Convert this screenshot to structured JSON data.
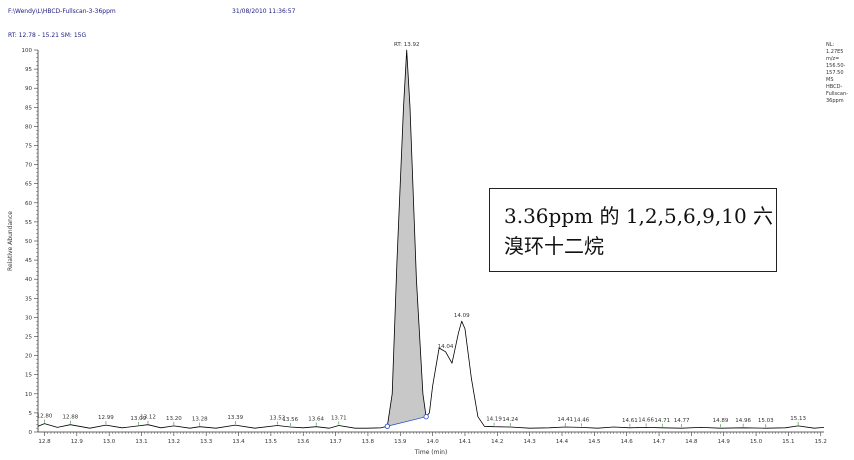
{
  "header": {
    "file_path": "F:\\Wendy\\L\\HBCD-Fullscan-3-36ppm",
    "datetime": "31/08/2010 11:36:57",
    "rt_range": "RT: 12.78 - 15.21   SM: 15G"
  },
  "nl_info": [
    "NL:",
    "1.27E5",
    "m/z=",
    "156.50-",
    "157.50",
    "MS",
    "HBCD-",
    "Fullscan-",
    "36ppm"
  ],
  "annotation": {
    "line1": "3.36ppm 的 1,2,5,6,9,10 六",
    "line2": "溴环十二烷"
  },
  "chart_data": {
    "type": "line",
    "title": "",
    "xlabel": "Time (min)",
    "ylabel": "Relative Abundance",
    "xlim": [
      12.78,
      15.21
    ],
    "ylim": [
      0,
      100
    ],
    "x_ticks": [
      12.8,
      12.9,
      13.0,
      13.1,
      13.2,
      13.3,
      13.4,
      13.5,
      13.6,
      13.7,
      13.8,
      13.9,
      14.0,
      14.1,
      14.2,
      14.3,
      14.4,
      14.5,
      14.6,
      14.7,
      14.8,
      14.9,
      15.0,
      15.1,
      15.2
    ],
    "y_ticks": [
      0,
      5,
      10,
      15,
      20,
      25,
      30,
      35,
      40,
      45,
      50,
      55,
      60,
      65,
      70,
      75,
      80,
      85,
      90,
      95,
      100
    ],
    "series": [
      {
        "x": [
          12.78,
          12.8,
          12.84,
          12.88,
          12.94,
          12.99,
          13.04,
          13.09,
          13.12,
          13.16,
          13.2,
          13.25,
          13.28,
          13.33,
          13.39,
          13.45,
          13.52,
          13.56,
          13.6,
          13.64,
          13.68,
          13.71,
          13.76,
          13.8,
          13.84,
          13.86,
          13.875,
          13.89,
          13.91,
          13.92,
          13.93,
          13.95,
          13.97,
          13.98,
          13.99,
          14.0,
          14.02,
          14.04,
          14.06,
          14.08,
          14.09,
          14.1,
          14.12,
          14.14,
          14.16,
          14.19,
          14.24,
          14.3,
          14.36,
          14.41,
          14.46,
          14.51,
          14.56,
          14.61,
          14.66,
          14.71,
          14.77,
          14.83,
          14.89,
          14.96,
          15.03,
          15.09,
          15.13,
          15.18,
          15.21
        ],
        "y": [
          1.5,
          2.2,
          1.2,
          1.9,
          1.0,
          1.8,
          1.1,
          1.6,
          1.9,
          1.1,
          1.6,
          1.0,
          1.4,
          1.0,
          1.8,
          1.0,
          1.7,
          1.3,
          1.1,
          1.4,
          1.0,
          1.7,
          1.0,
          1.0,
          1.1,
          1.5,
          10.0,
          45.0,
          85.0,
          100.0,
          85.0,
          40.0,
          10.0,
          4.0,
          5.0,
          12.0,
          22.0,
          21.0,
          18.0,
          26.0,
          29.0,
          27.0,
          14.0,
          4.0,
          1.5,
          1.4,
          1.3,
          1.0,
          1.1,
          1.3,
          1.2,
          1.0,
          1.3,
          1.1,
          1.2,
          1.1,
          1.0,
          1.2,
          1.0,
          1.1,
          1.0,
          1.1,
          1.6,
          1.0,
          1.2
        ]
      }
    ],
    "shaded_peak_range": [
      13.86,
      13.98
    ],
    "peak_labels": [
      {
        "label": "RT: 13.92",
        "x": 13.92,
        "y": 100.0
      },
      {
        "label": "14.04",
        "x": 14.04,
        "y": 21.0
      },
      {
        "label": "14.09",
        "x": 14.09,
        "y": 29.0
      },
      {
        "label": "12.80",
        "x": 12.8,
        "y": 2.2
      },
      {
        "label": "12.88",
        "x": 12.88,
        "y": 1.9
      },
      {
        "label": "12.99",
        "x": 12.99,
        "y": 1.8
      },
      {
        "label": "13.09",
        "x": 13.09,
        "y": 1.6
      },
      {
        "label": "13.12",
        "x": 13.12,
        "y": 1.9
      },
      {
        "label": "13.20",
        "x": 13.2,
        "y": 1.6
      },
      {
        "label": "13.28",
        "x": 13.28,
        "y": 1.4
      },
      {
        "label": "13.39",
        "x": 13.39,
        "y": 1.8
      },
      {
        "label": "13.52",
        "x": 13.52,
        "y": 1.7
      },
      {
        "label": "13.56",
        "x": 13.56,
        "y": 1.3
      },
      {
        "label": "13.64",
        "x": 13.64,
        "y": 1.4
      },
      {
        "label": "13.71",
        "x": 13.71,
        "y": 1.7
      },
      {
        "label": "14.19",
        "x": 14.19,
        "y": 1.4
      },
      {
        "label": "14.24",
        "x": 14.24,
        "y": 1.3
      },
      {
        "label": "14.41",
        "x": 14.41,
        "y": 1.3
      },
      {
        "label": "14.46",
        "x": 14.46,
        "y": 1.2
      },
      {
        "label": "14.61",
        "x": 14.61,
        "y": 1.1
      },
      {
        "label": "14.66",
        "x": 14.66,
        "y": 1.2
      },
      {
        "label": "14.71",
        "x": 14.71,
        "y": 1.1
      },
      {
        "label": "14.77",
        "x": 14.77,
        "y": 1.0
      },
      {
        "label": "14.89",
        "x": 14.89,
        "y": 1.0
      },
      {
        "label": "14.96",
        "x": 14.96,
        "y": 1.1
      },
      {
        "label": "15.03",
        "x": 15.03,
        "y": 1.0
      },
      {
        "label": "15.13",
        "x": 15.13,
        "y": 1.6
      }
    ],
    "integration_markers": [
      {
        "x": 13.86,
        "y": 1.5
      },
      {
        "x": 13.98,
        "y": 4.0
      }
    ],
    "colors": {
      "trace": "#000000",
      "fill": "#c8c8c8",
      "marker": "#2244cc",
      "baseline_tick": "#2a8a2a",
      "axis": "#333333"
    },
    "grid": false,
    "legend": "none"
  }
}
